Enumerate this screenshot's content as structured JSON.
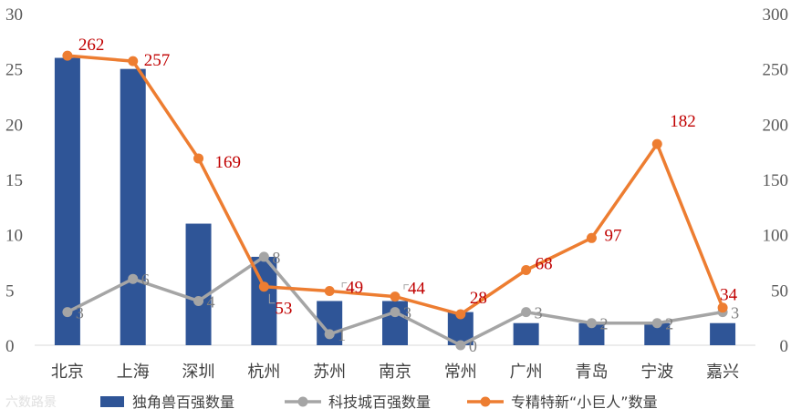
{
  "chart_data": {
    "type": "bar",
    "categories": [
      "北京",
      "上海",
      "深圳",
      "杭州",
      "苏州",
      "南京",
      "常州",
      "广州",
      "青岛",
      "宁波",
      "嘉兴"
    ],
    "series": [
      {
        "name": "独角兽百强数量",
        "type": "bar",
        "axis": "left",
        "color": "#2f5597",
        "values": [
          26,
          25,
          11,
          8,
          4,
          4,
          3,
          2,
          2,
          2,
          2
        ]
      },
      {
        "name": "科技城百强数量",
        "type": "line",
        "axis": "left",
        "color": "#a5a5a5",
        "values": [
          3,
          6,
          4,
          8,
          1,
          3,
          0,
          3,
          2,
          2,
          3
        ]
      },
      {
        "name": "专精特新“小巨人”数量",
        "type": "line",
        "axis": "right",
        "color": "#ed7d31",
        "values": [
          262,
          257,
          169,
          53,
          49,
          44,
          28,
          68,
          97,
          182,
          34
        ]
      }
    ],
    "left_axis": {
      "ylim": [
        0,
        30
      ],
      "ticks": [
        "0",
        "5",
        "10",
        "15",
        "20",
        "25",
        "30"
      ]
    },
    "right_axis": {
      "ylim": [
        0,
        300
      ],
      "ticks": [
        "0",
        "50",
        "100",
        "150",
        "200",
        "250",
        "300"
      ]
    },
    "grid": false,
    "legend_position": "bottom",
    "label_color_right": "#c00000",
    "label_color_left": "#7f7f7f"
  },
  "watermark": "六数路景"
}
